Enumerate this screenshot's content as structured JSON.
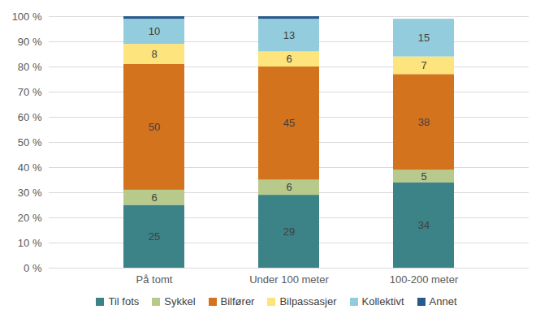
{
  "chart_data": {
    "type": "bar",
    "stacked": true,
    "data_labels": true,
    "grid": true,
    "legend": "bottom",
    "categories": [
      "På tomt",
      "Under 100 meter",
      "100-200 meter"
    ],
    "series": [
      {
        "name": "Til fots",
        "color": "#3b8387",
        "values": [
          25,
          29,
          34
        ]
      },
      {
        "name": "Sykkel",
        "color": "#b8c98c",
        "values": [
          6,
          6,
          5
        ]
      },
      {
        "name": "Bilfører",
        "color": "#d4731d",
        "values": [
          50,
          45,
          38
        ]
      },
      {
        "name": "Bilpassasjer",
        "color": "#fde47c",
        "values": [
          8,
          6,
          7
        ]
      },
      {
        "name": "Kollektivt",
        "color": "#93cddd",
        "values": [
          10,
          13,
          15
        ]
      },
      {
        "name": "Annet",
        "color": "#2a5a8c",
        "values": [
          1,
          1,
          0
        ],
        "value_labels": [
          null,
          null,
          null
        ]
      }
    ],
    "ylim": [
      0,
      100
    ],
    "yticks": [
      {
        "value": 0,
        "label": "0 %"
      },
      {
        "value": 10,
        "label": "10 %"
      },
      {
        "value": 20,
        "label": "20 %"
      },
      {
        "value": 30,
        "label": "30 %"
      },
      {
        "value": 40,
        "label": "40 %"
      },
      {
        "value": 50,
        "label": "50 %"
      },
      {
        "value": 60,
        "label": "60 %"
      },
      {
        "value": 70,
        "label": "70 %"
      },
      {
        "value": 80,
        "label": "80 %"
      },
      {
        "value": 90,
        "label": "90 %"
      },
      {
        "value": 100,
        "label": "100 %"
      }
    ]
  }
}
